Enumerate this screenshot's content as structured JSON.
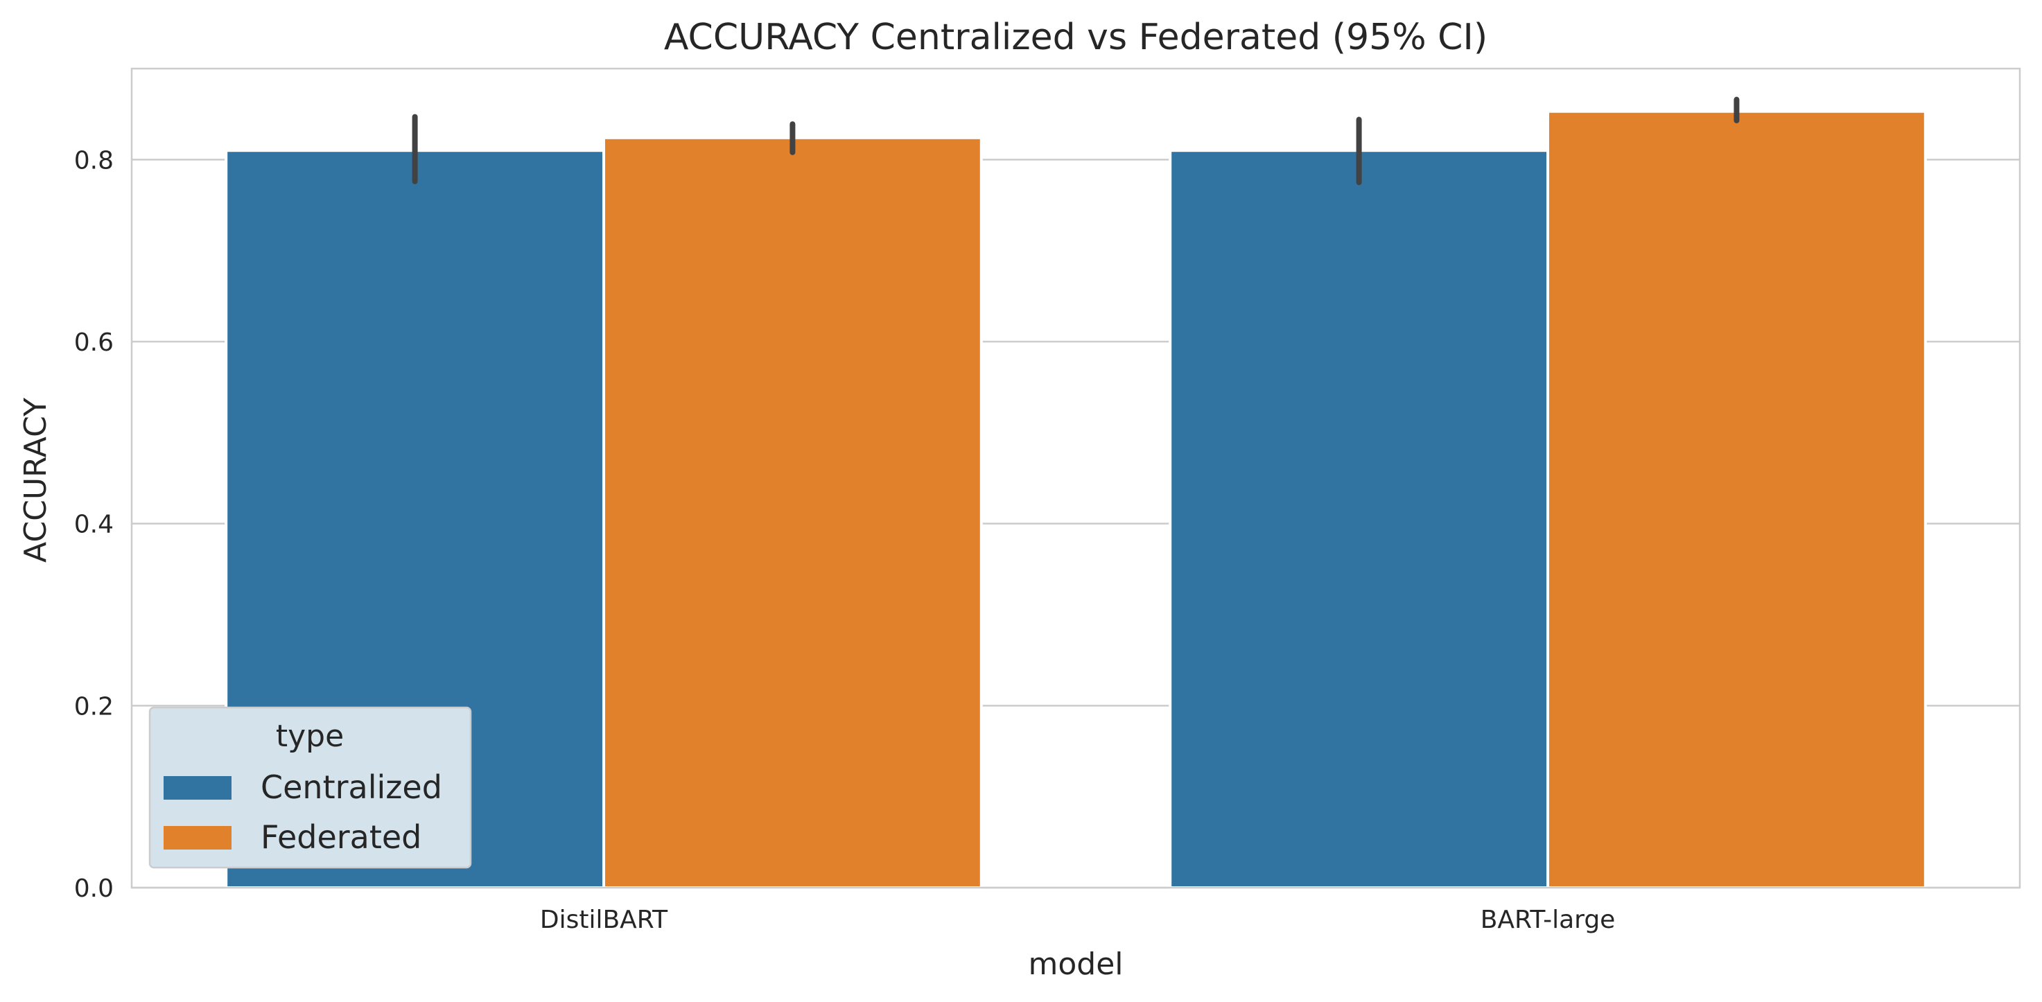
{
  "chart_data": {
    "type": "bar",
    "title": "ACCURACY Centralized vs Federated (95% CI)",
    "xlabel": "model",
    "ylabel": "ACCURACY",
    "categories": [
      "DistilBART",
      "BART-large"
    ],
    "series": [
      {
        "name": "Centralized",
        "color": "#3274a1",
        "values": [
          0.81,
          0.81
        ],
        "ci": [
          [
            0.776,
            0.847
          ],
          [
            0.775,
            0.844
          ]
        ]
      },
      {
        "name": "Federated",
        "color": "#e1812c",
        "values": [
          0.824,
          0.853
        ],
        "ci": [
          [
            0.808,
            0.839
          ],
          [
            0.843,
            0.866
          ]
        ]
      }
    ],
    "ylim": [
      0,
      0.9
    ],
    "yticks": [
      "0.0",
      "0.2",
      "0.4",
      "0.6",
      "0.8"
    ],
    "grid": "y",
    "legend": {
      "title": "type",
      "placement": "lower-left"
    }
  }
}
